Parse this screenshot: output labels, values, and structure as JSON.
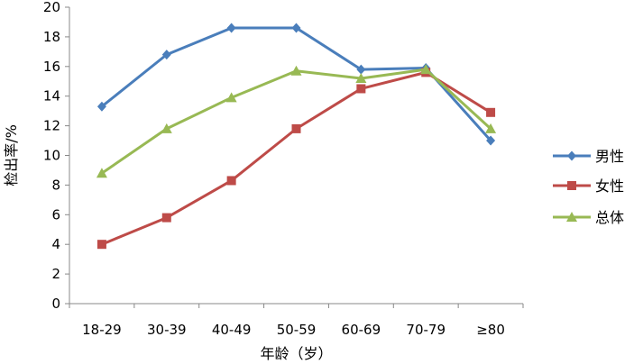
{
  "chart_data": {
    "type": "line",
    "categories": [
      "18-29",
      "30-39",
      "40-49",
      "50-59",
      "60-69",
      "70-79",
      "≥80"
    ],
    "series": [
      {
        "name": "男性",
        "values": [
          13.3,
          16.8,
          18.6,
          18.6,
          15.8,
          15.9,
          11.0
        ],
        "color": "#4a7ebb",
        "marker": "diamond"
      },
      {
        "name": "女性",
        "values": [
          4.0,
          5.8,
          8.3,
          11.8,
          14.5,
          15.6,
          12.9
        ],
        "color": "#be4b48",
        "marker": "square"
      },
      {
        "name": "总体",
        "values": [
          8.8,
          11.8,
          13.9,
          15.7,
          15.2,
          15.8,
          11.8
        ],
        "color": "#98b954",
        "marker": "triangle"
      }
    ],
    "xlabel": "年龄（岁）",
    "ylabel": "检出率/%",
    "ylim": [
      0,
      20
    ],
    "yticks": [
      0,
      2,
      4,
      6,
      8,
      10,
      12,
      14,
      16,
      18,
      20
    ],
    "grid": false,
    "legend": "right"
  }
}
